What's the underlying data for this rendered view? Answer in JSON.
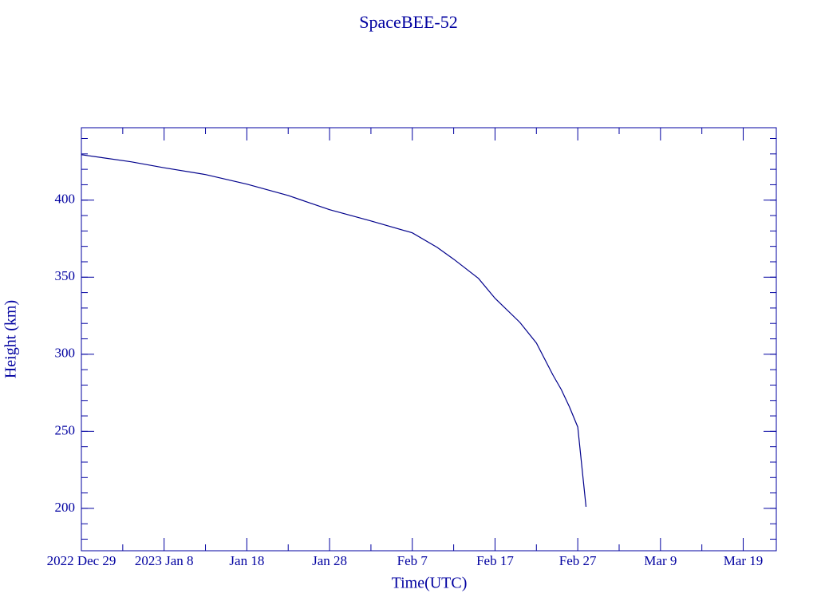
{
  "chart_data": {
    "type": "line",
    "title": "SpaceBEE-52",
    "x_label": "Time(UTC)",
    "y_label": "Height (km)",
    "x": [
      "2022-12-29",
      "2023-01-04",
      "2023-01-08",
      "2023-01-13",
      "2023-01-18",
      "2023-01-23",
      "2023-01-28",
      "2023-02-02",
      "2023-02-07",
      "2023-02-10",
      "2023-02-12",
      "2023-02-15",
      "2023-02-17",
      "2023-02-20",
      "2023-02-22",
      "2023-02-24",
      "2023-02-25",
      "2023-02-26",
      "2023-02-27",
      "2023-02-28"
    ],
    "series": [
      {
        "name": "SpaceBEE-52",
        "color": "#00008b",
        "values": [
          429.5,
          424.9,
          421,
          416.6,
          410.4,
          403,
          393.8,
          386.5,
          378.8,
          369.4,
          361.7,
          349.2,
          336.3,
          320.7,
          307.3,
          286.5,
          277.2,
          265.8,
          252.8,
          201
        ]
      }
    ],
    "xlim": [
      "2022-12-29",
      "2023-03-23"
    ],
    "xticks": [
      {
        "value": "2022-12-29",
        "label": "2022 Dec 29"
      },
      {
        "value": "2023-01-08",
        "label": "2023 Jan  8"
      },
      {
        "value": "2023-01-18",
        "label": "Jan 18"
      },
      {
        "value": "2023-01-28",
        "label": "Jan 28"
      },
      {
        "value": "2023-02-07",
        "label": "Feb  7"
      },
      {
        "value": "2023-02-17",
        "label": "Feb 17"
      },
      {
        "value": "2023-02-27",
        "label": "Feb 27"
      },
      {
        "value": "2023-03-09",
        "label": "Mar  9"
      },
      {
        "value": "2023-03-19",
        "label": "Mar 19"
      }
    ],
    "ylim": [
      172.5,
      447
    ],
    "yticks": [
      200,
      250,
      300,
      350,
      400
    ],
    "grid": false
  }
}
